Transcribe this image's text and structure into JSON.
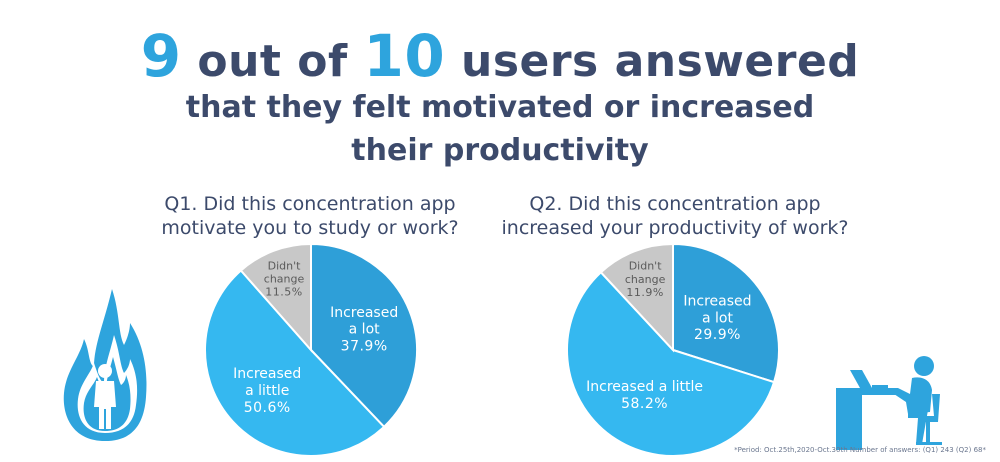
{
  "headline": {
    "num1": "9",
    "text1": " out of ",
    "num2": "10",
    "text2": " users answered",
    "line2": "that they felt motivated or increased",
    "line3": "their productivity"
  },
  "footnote": "*Period: Oct.25th,2020-Oct.30th Number of answers: (Q1) 243 (Q2) 68*",
  "icons": {
    "left": "flame-person-icon",
    "right": "person-at-desk-icon"
  },
  "colors": {
    "lot": "#2e9fd8",
    "little": "#35b8f0",
    "none": "#c8c8c8",
    "navy": "#3c4a6b"
  },
  "chart_data": [
    {
      "type": "pie",
      "title_line1": "Q1. Did this concentration app",
      "title_line2": "motivate you to study or work?",
      "slices": [
        {
          "label_line1": "Increased",
          "label_line2": "a lot",
          "value": 37.9,
          "display": "37.9%"
        },
        {
          "label_line1": "Increased",
          "label_line2": "a little",
          "value": 50.6,
          "display": "50.6%"
        },
        {
          "label_line1": "Didn't",
          "label_line2": "change",
          "value": 11.5,
          "display": "11.5%"
        }
      ]
    },
    {
      "type": "pie",
      "title_line1": "Q2. Did this concentration app",
      "title_line2": "increased your productivity of work?",
      "slices": [
        {
          "label_line1": "Increased",
          "label_line2": "a lot",
          "value": 29.9,
          "display": "29.9%"
        },
        {
          "label_line1": "Increased a little",
          "label_line2": "",
          "value": 58.2,
          "display": "58.2%"
        },
        {
          "label_line1": "Didn't",
          "label_line2": "change",
          "value": 11.9,
          "display": "11.9%"
        }
      ]
    }
  ]
}
